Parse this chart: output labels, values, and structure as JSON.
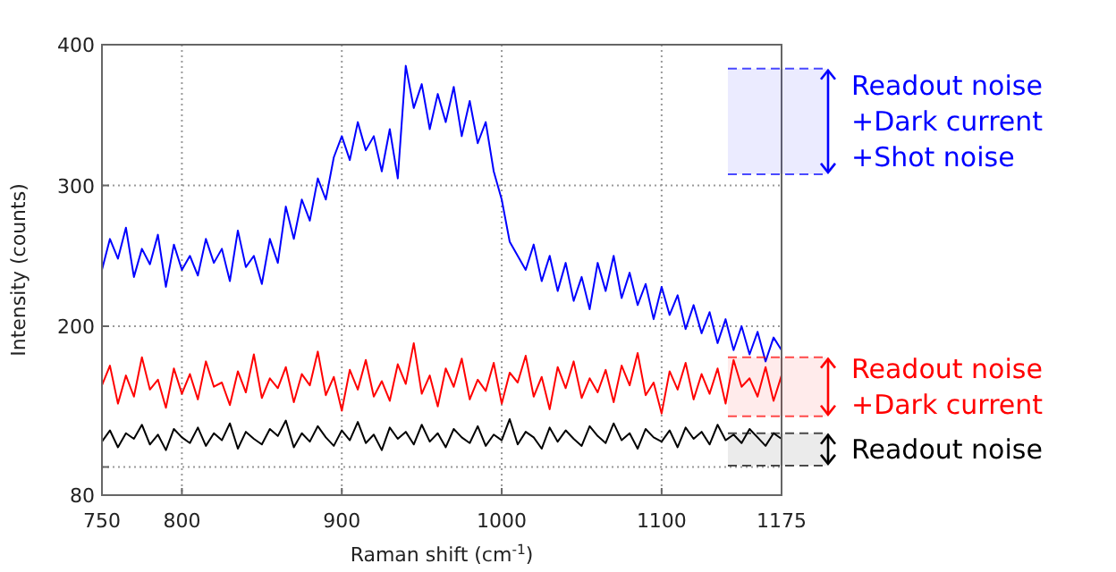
{
  "chart_data": {
    "type": "line",
    "xlabel": "Raman shift (cm$^{-1}$)",
    "ylabel": "Intensity (counts)",
    "xlim": [
      750,
      1175
    ],
    "xticks": [
      750,
      800,
      900,
      1000,
      1100,
      1175
    ],
    "ylim": [
      80,
      400
    ],
    "yticks": [
      80,
      {
        "value": 100,
        "label": null
      },
      200,
      300,
      400
    ],
    "grid": true,
    "marker": "none",
    "line_style": "solid",
    "x": [
      750,
      755,
      760,
      765,
      770,
      775,
      780,
      785,
      790,
      795,
      800,
      805,
      810,
      815,
      820,
      825,
      830,
      835,
      840,
      845,
      850,
      855,
      860,
      865,
      870,
      875,
      880,
      885,
      890,
      895,
      900,
      905,
      910,
      915,
      920,
      925,
      930,
      935,
      940,
      945,
      950,
      955,
      960,
      965,
      970,
      975,
      980,
      985,
      990,
      995,
      1000,
      1005,
      1010,
      1015,
      1020,
      1025,
      1030,
      1035,
      1040,
      1045,
      1050,
      1055,
      1060,
      1065,
      1070,
      1075,
      1080,
      1085,
      1090,
      1095,
      1100,
      1105,
      1110,
      1115,
      1120,
      1125,
      1130,
      1135,
      1140,
      1145,
      1150,
      1155,
      1160,
      1165,
      1170,
      1175
    ],
    "series": [
      {
        "color": "#0000ff",
        "values": [
          240,
          262,
          248,
          270,
          235,
          255,
          244,
          265,
          228,
          258,
          240,
          250,
          236,
          262,
          245,
          255,
          232,
          268,
          242,
          250,
          230,
          262,
          245,
          285,
          262,
          290,
          275,
          305,
          290,
          320,
          335,
          318,
          345,
          325,
          335,
          310,
          340,
          305,
          385,
          355,
          372,
          340,
          365,
          345,
          370,
          335,
          360,
          330,
          345,
          310,
          290,
          260,
          250,
          240,
          258,
          232,
          250,
          225,
          245,
          218,
          235,
          212,
          245,
          225,
          250,
          220,
          238,
          215,
          230,
          205,
          228,
          208,
          222,
          198,
          215,
          195,
          210,
          188,
          205,
          183,
          200,
          180,
          196,
          175,
          192,
          183
        ]
      },
      {
        "color": "#ff0000",
        "values": [
          158,
          172,
          145,
          165,
          150,
          178,
          155,
          162,
          142,
          170,
          152,
          166,
          148,
          175,
          157,
          160,
          144,
          168,
          153,
          180,
          149,
          163,
          156,
          171,
          146,
          166,
          158,
          182,
          151,
          164,
          140,
          169,
          155,
          176,
          150,
          161,
          147,
          173,
          159,
          188,
          152,
          165,
          143,
          170,
          157,
          177,
          148,
          162,
          154,
          174,
          145,
          167,
          160,
          179,
          150,
          164,
          141,
          171,
          156,
          175,
          149,
          163,
          153,
          169,
          146,
          172,
          158,
          181,
          151,
          160,
          138,
          168,
          155,
          174,
          148,
          166,
          152,
          170,
          145,
          176,
          157,
          163,
          150,
          171,
          147,
          165
        ]
      },
      {
        "color": "#000000",
        "values": [
          118,
          126,
          114,
          124,
          120,
          130,
          116,
          123,
          112,
          127,
          121,
          117,
          128,
          115,
          124,
          119,
          131,
          113,
          125,
          120,
          116,
          127,
          122,
          133,
          114,
          124,
          118,
          129,
          121,
          115,
          126,
          119,
          132,
          117,
          123,
          112,
          128,
          120,
          125,
          116,
          130,
          118,
          124,
          114,
          127,
          121,
          117,
          129,
          115,
          123,
          119,
          134,
          116,
          125,
          121,
          113,
          128,
          118,
          126,
          120,
          115,
          129,
          122,
          117,
          131,
          119,
          124,
          113,
          127,
          121,
          118,
          126,
          114,
          128,
          120,
          125,
          116,
          130,
          119,
          123,
          117,
          127,
          121,
          115,
          124,
          120
        ]
      }
    ],
    "bands": [
      {
        "axis": "y",
        "from": 308,
        "to": 383,
        "label": "Readout noise\n+Dark current\n+Shot noise",
        "color": "#0000ff"
      },
      {
        "axis": "y",
        "from": 136,
        "to": 178,
        "label": "Readout noise\n+Dark current",
        "color": "#ff0000"
      },
      {
        "axis": "y",
        "from": 101,
        "to": 124,
        "label": "Readout noise",
        "color": "#000000"
      }
    ]
  }
}
